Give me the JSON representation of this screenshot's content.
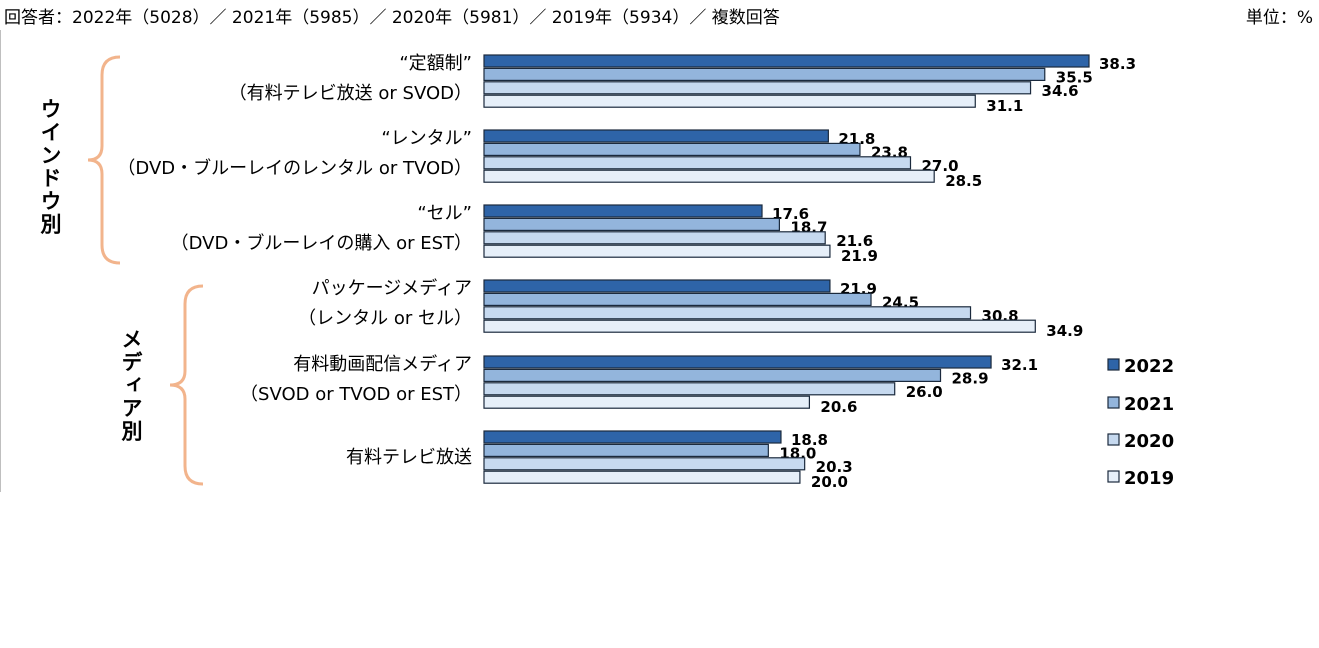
{
  "header": {
    "respondents": "回答者：2022年（5028）／ 2021年（5985）／ 2020年（5981）／ 2019年（5934）／ 複数回答",
    "unit": "単位：%"
  },
  "colors": {
    "2022": "#2e64a8",
    "2021": "#93b5dc",
    "2020": "#c6d9ef",
    "2019": "#e6eff9",
    "bar_border": "#1b2a3d",
    "bracket": "#f2b48c"
  },
  "chart_data": {
    "type": "bar",
    "orientation": "horizontal",
    "xlim": [
      0,
      40
    ],
    "groups": [
      {
        "label": "ウインドウ別",
        "categories": [
          0,
          1,
          2
        ]
      },
      {
        "label": "メディア別",
        "categories": [
          3,
          4,
          5
        ]
      }
    ],
    "categories": [
      [
        "“定額制”",
        "（有料テレビ放送 or SVOD）"
      ],
      [
        "“レンタル”",
        "（DVD・ブルーレイのレンタル or TVOD）"
      ],
      [
        "“セル”",
        "（DVD・ブルーレイの購入 or EST）"
      ],
      [
        "パッケージメディア",
        "（レンタル or セル）"
      ],
      [
        "有料動画配信メディア",
        "（SVOD or TVOD or EST）"
      ],
      [
        "有料テレビ放送"
      ]
    ],
    "series": [
      {
        "name": "2022",
        "values": [
          38.3,
          21.8,
          17.6,
          21.9,
          32.1,
          18.8
        ]
      },
      {
        "name": "2021",
        "values": [
          35.5,
          23.8,
          18.7,
          24.5,
          28.9,
          18.0
        ]
      },
      {
        "name": "2020",
        "values": [
          34.6,
          27.0,
          21.6,
          30.8,
          26.0,
          20.3
        ]
      },
      {
        "name": "2019",
        "values": [
          31.1,
          28.5,
          21.9,
          34.9,
          20.6,
          20.0
        ]
      }
    ],
    "legend": "bottom-right",
    "grid": false
  }
}
